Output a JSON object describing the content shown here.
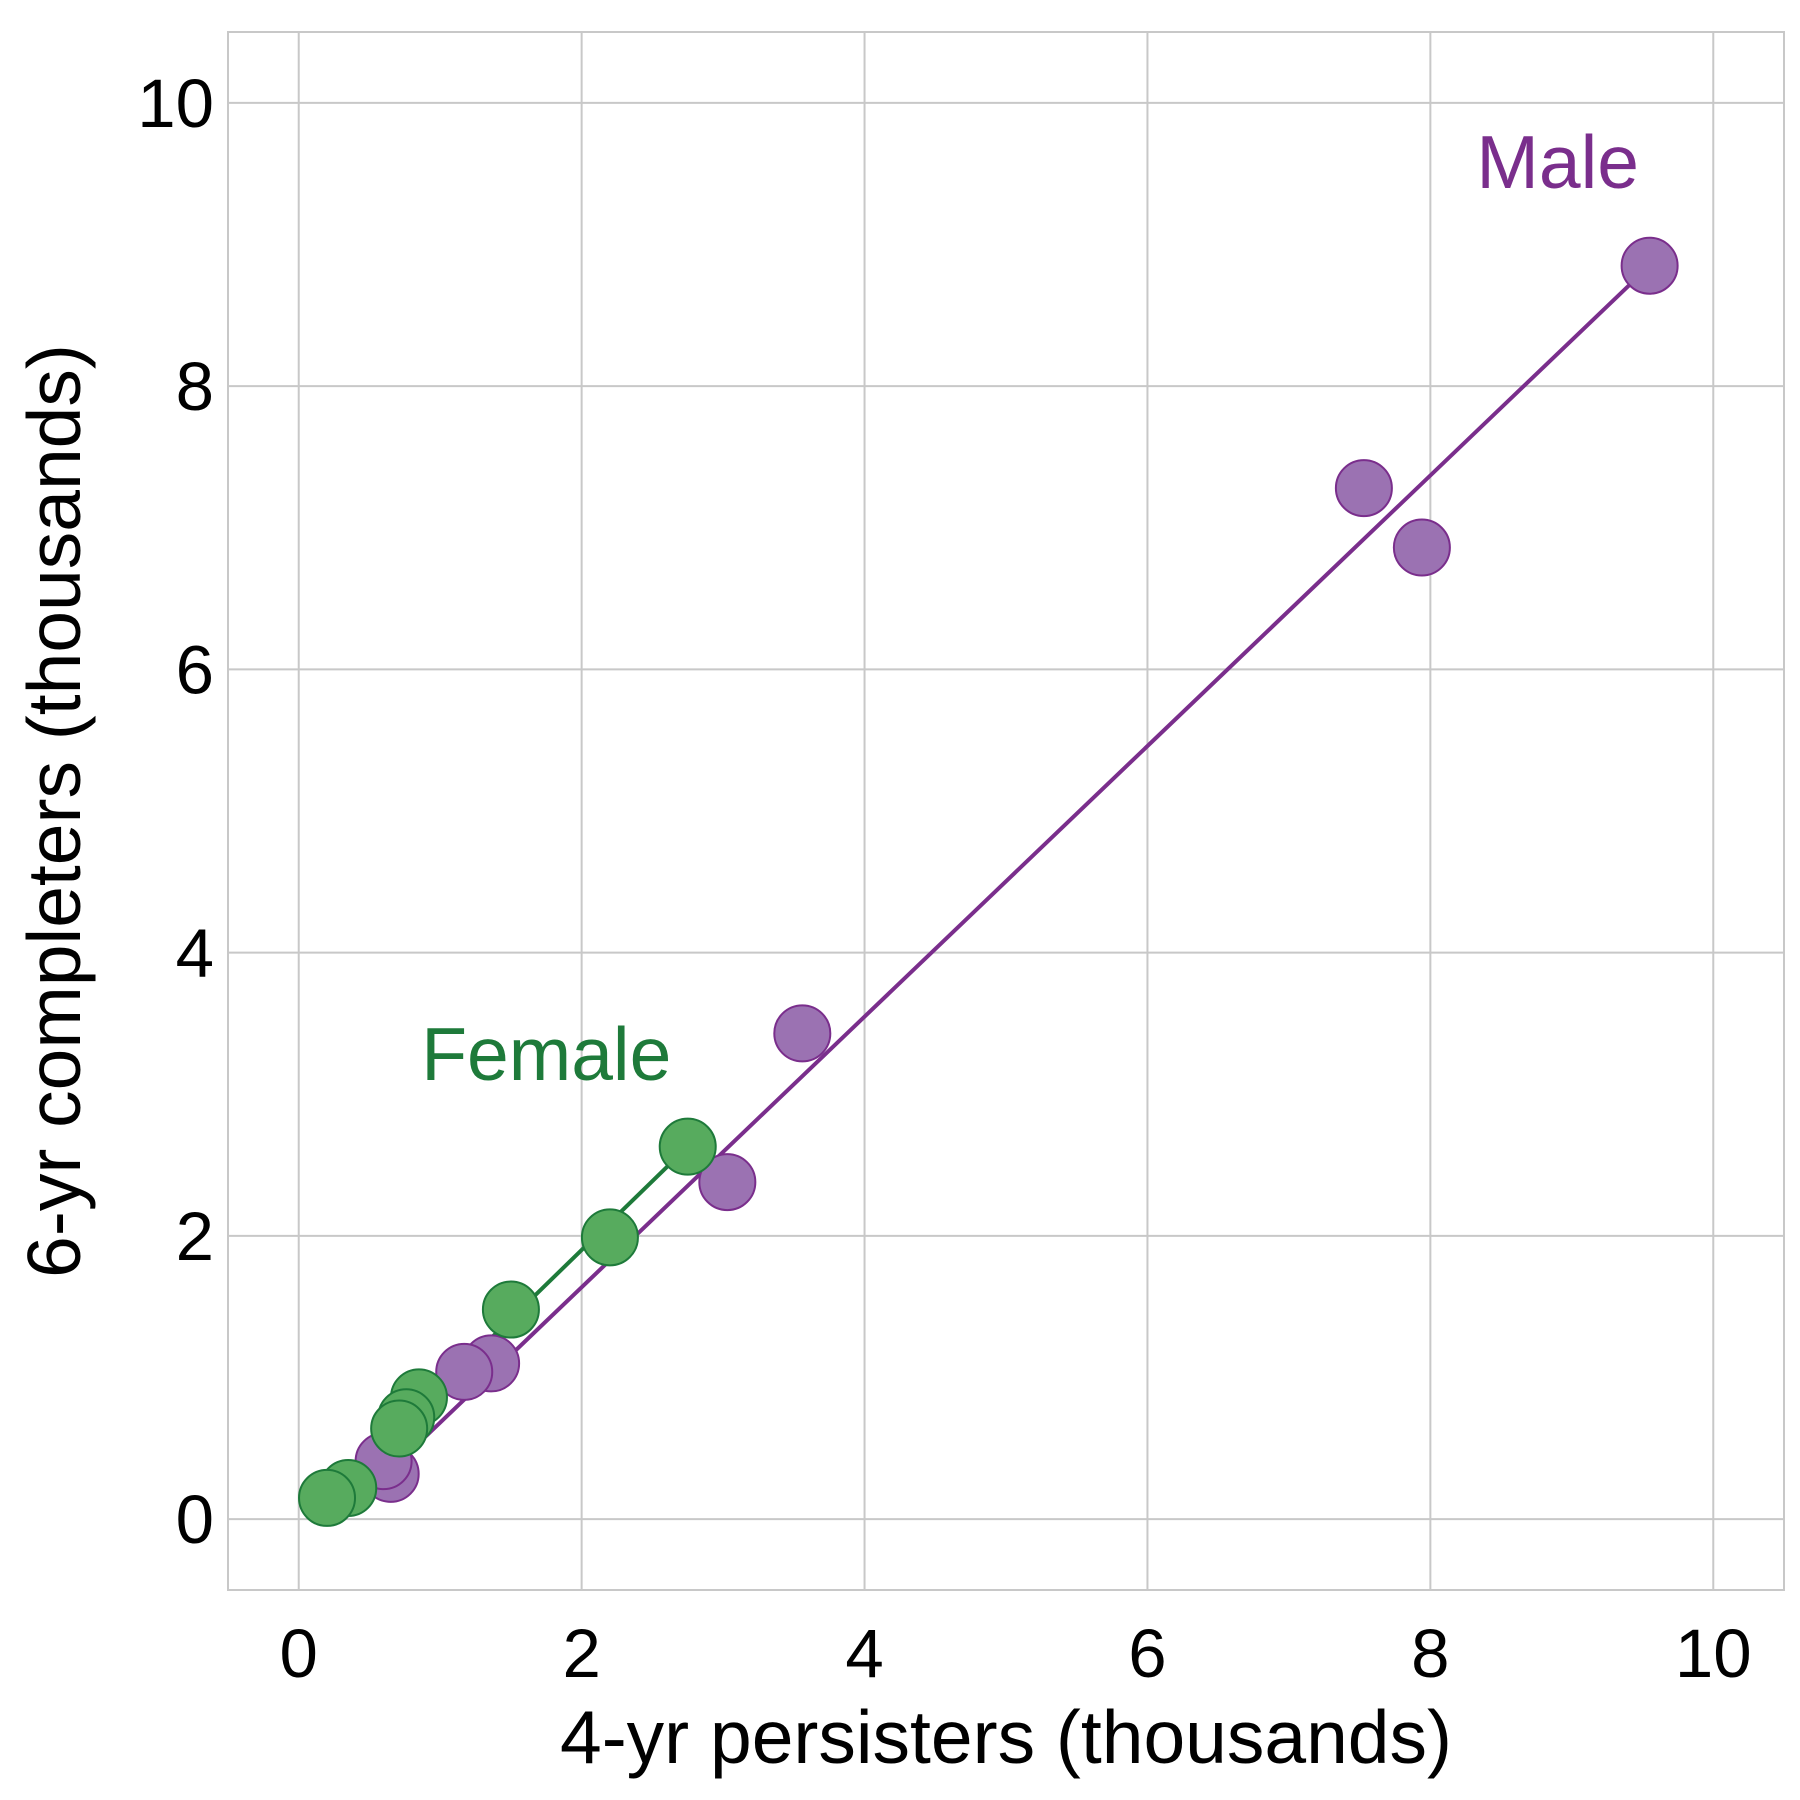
{
  "chart_data": {
    "type": "scatter",
    "title": "",
    "xlabel": "4-yr persisters (thousands)",
    "ylabel": "6-yr completers (thousands)",
    "xlim": [
      -0.5,
      10.5
    ],
    "ylim": [
      -0.5,
      10.5
    ],
    "xticks": [
      0,
      2,
      4,
      6,
      8,
      10
    ],
    "yticks": [
      0,
      2,
      4,
      6,
      8,
      10
    ],
    "xtick_labels": [
      "0",
      "2",
      "4",
      "6",
      "8",
      "10"
    ],
    "ytick_labels": [
      "0",
      "2",
      "4",
      "6",
      "8",
      "10"
    ],
    "grid": true,
    "legend": "none (direct labels)",
    "series": [
      {
        "name": "Male",
        "color": "#7a2e8c",
        "fill": "#9b72b2",
        "label_at": [
          8.9,
          9.4
        ],
        "line": [
          [
            0.6,
            0.3
          ],
          [
            9.55,
            8.85
          ]
        ],
        "points": [
          [
            9.55,
            8.85
          ],
          [
            7.53,
            7.28
          ],
          [
            7.94,
            6.86
          ],
          [
            3.56,
            3.43
          ],
          [
            3.03,
            2.38
          ],
          [
            1.36,
            1.1
          ],
          [
            1.17,
            1.04
          ],
          [
            0.65,
            0.32
          ],
          [
            0.6,
            0.41
          ]
        ]
      },
      {
        "name": "Female",
        "color": "#1e7a3a",
        "fill": "#57ab5e",
        "label_at": [
          1.75,
          3.1
        ],
        "line": [
          [
            0.2,
            0.15
          ],
          [
            2.75,
            2.63
          ]
        ],
        "points": [
          [
            2.75,
            2.63
          ],
          [
            2.2,
            1.99
          ],
          [
            1.5,
            1.48
          ],
          [
            0.85,
            0.86
          ],
          [
            0.76,
            0.72
          ],
          [
            0.71,
            0.64
          ],
          [
            0.35,
            0.22
          ],
          [
            0.2,
            0.15
          ]
        ]
      }
    ]
  }
}
